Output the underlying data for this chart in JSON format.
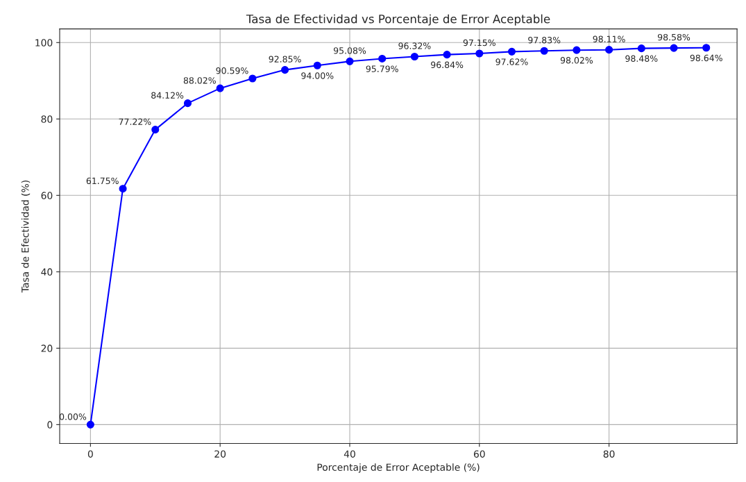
{
  "chart_data": {
    "type": "line",
    "title": "Tasa de Efectividad vs Porcentaje de Error Aceptable",
    "xlabel": "Porcentaje de Error Aceptable (%)",
    "ylabel": "Tasa de Efectividad (%)",
    "x": [
      0,
      5,
      10,
      15,
      20,
      25,
      30,
      35,
      40,
      45,
      50,
      55,
      60,
      65,
      70,
      75,
      80,
      85,
      90,
      95
    ],
    "series": [
      {
        "color": "#0000ff",
        "values": [
          0.0,
          61.75,
          77.22,
          84.12,
          88.02,
          90.59,
          92.85,
          94.0,
          95.08,
          95.79,
          96.32,
          96.84,
          97.15,
          97.62,
          97.83,
          98.02,
          98.11,
          98.48,
          98.58,
          98.64
        ],
        "value_labels": [
          "0.00%",
          "61.75%",
          "77.22%",
          "84.12%",
          "88.02%",
          "90.59%",
          "92.85%",
          "94.00%",
          "95.08%",
          "95.79%",
          "96.32%",
          "96.84%",
          "97.15%",
          "97.62%",
          "97.83%",
          "98.02%",
          "98.11%",
          "98.48%",
          "98.58%",
          "98.64%"
        ]
      }
    ],
    "xlim": [
      -4.75,
      99.75
    ],
    "xticks": [
      0,
      20,
      40,
      60,
      80
    ],
    "ylim": [
      -4.93,
      103.57
    ],
    "yticks": [
      0,
      20,
      40,
      60,
      80,
      100
    ],
    "grid": true,
    "marker": "circle",
    "line_style": "solid"
  }
}
